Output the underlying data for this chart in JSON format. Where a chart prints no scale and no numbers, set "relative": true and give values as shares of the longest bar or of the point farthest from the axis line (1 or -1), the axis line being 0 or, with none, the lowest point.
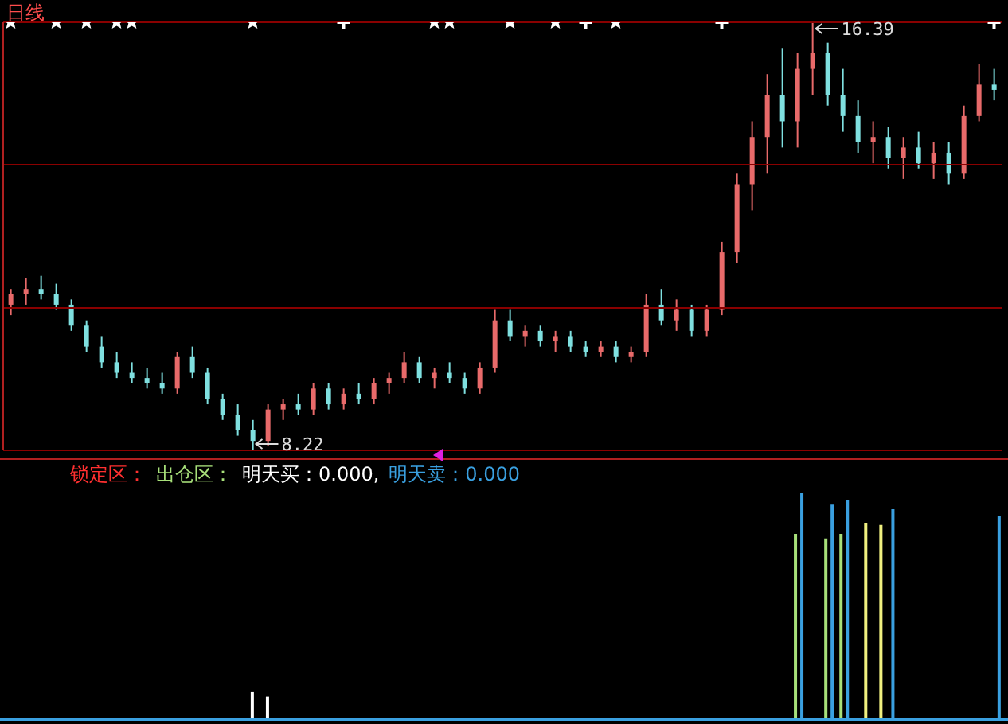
{
  "chart_data": [
    {
      "type": "candlestick",
      "title": "日线",
      "categories": [
        null,
        null,
        null,
        null,
        null,
        null,
        null,
        null,
        null,
        null,
        null,
        null,
        null,
        null,
        null,
        null,
        null,
        null,
        null,
        null,
        null,
        null,
        null,
        null,
        null,
        null,
        null,
        null,
        null,
        null,
        null,
        null,
        null,
        null,
        null,
        null,
        null,
        null,
        null,
        null,
        null,
        null,
        null,
        null,
        null,
        null,
        null,
        null,
        null,
        null,
        null,
        null,
        null,
        null,
        null,
        null,
        null,
        null,
        null,
        null,
        null,
        null,
        null,
        null,
        null,
        null
      ],
      "ohlc": [
        [
          11.0,
          11.3,
          10.8,
          11.2
        ],
        [
          11.2,
          11.5,
          11.0,
          11.3
        ],
        [
          11.3,
          11.55,
          11.1,
          11.2
        ],
        [
          11.2,
          11.4,
          10.9,
          11.0
        ],
        [
          11.0,
          11.1,
          10.5,
          10.6
        ],
        [
          10.6,
          10.7,
          10.1,
          10.2
        ],
        [
          10.2,
          10.4,
          9.8,
          9.9
        ],
        [
          9.9,
          10.1,
          9.6,
          9.7
        ],
        [
          9.7,
          9.9,
          9.5,
          9.6
        ],
        [
          9.6,
          9.8,
          9.4,
          9.5
        ],
        [
          9.5,
          9.7,
          9.3,
          9.4
        ],
        [
          9.4,
          10.1,
          9.3,
          10.0
        ],
        [
          10.0,
          10.2,
          9.6,
          9.7
        ],
        [
          9.7,
          9.8,
          9.1,
          9.2
        ],
        [
          9.2,
          9.3,
          8.8,
          8.9
        ],
        [
          8.9,
          9.1,
          8.5,
          8.6
        ],
        [
          8.6,
          8.8,
          8.22,
          8.4
        ],
        [
          8.4,
          9.1,
          8.3,
          9.0
        ],
        [
          9.0,
          9.2,
          8.8,
          9.1
        ],
        [
          9.1,
          9.3,
          8.9,
          9.0
        ],
        [
          9.0,
          9.5,
          8.9,
          9.4
        ],
        [
          9.4,
          9.5,
          9.0,
          9.1
        ],
        [
          9.1,
          9.4,
          9.0,
          9.3
        ],
        [
          9.3,
          9.5,
          9.1,
          9.2
        ],
        [
          9.2,
          9.6,
          9.1,
          9.5
        ],
        [
          9.5,
          9.7,
          9.3,
          9.6
        ],
        [
          9.6,
          10.1,
          9.5,
          9.9
        ],
        [
          9.9,
          10.0,
          9.5,
          9.6
        ],
        [
          9.6,
          9.8,
          9.4,
          9.7
        ],
        [
          9.7,
          9.9,
          9.5,
          9.6
        ],
        [
          9.6,
          9.7,
          9.3,
          9.4
        ],
        [
          9.4,
          9.9,
          9.3,
          9.8
        ],
        [
          9.8,
          10.9,
          9.7,
          10.7
        ],
        [
          10.7,
          10.9,
          10.3,
          10.4
        ],
        [
          10.4,
          10.6,
          10.2,
          10.5
        ],
        [
          10.5,
          10.6,
          10.2,
          10.3
        ],
        [
          10.3,
          10.5,
          10.1,
          10.4
        ],
        [
          10.4,
          10.5,
          10.1,
          10.2
        ],
        [
          10.2,
          10.3,
          10.0,
          10.1
        ],
        [
          10.1,
          10.3,
          10.0,
          10.2
        ],
        [
          10.2,
          10.3,
          9.9,
          10.0
        ],
        [
          10.0,
          10.2,
          9.9,
          10.1
        ],
        [
          10.1,
          11.2,
          10.0,
          11.0
        ],
        [
          11.0,
          11.3,
          10.6,
          10.7
        ],
        [
          10.7,
          11.1,
          10.5,
          10.9
        ],
        [
          10.9,
          11.0,
          10.4,
          10.5
        ],
        [
          10.5,
          11.0,
          10.4,
          10.9
        ],
        [
          10.9,
          12.2,
          10.8,
          12.0
        ],
        [
          12.0,
          13.5,
          11.8,
          13.3
        ],
        [
          13.3,
          14.5,
          12.8,
          14.2
        ],
        [
          14.2,
          15.4,
          13.5,
          15.0
        ],
        [
          15.0,
          15.9,
          14.0,
          14.5
        ],
        [
          14.5,
          15.8,
          14.0,
          15.5
        ],
        [
          15.5,
          16.39,
          15.0,
          15.8
        ],
        [
          15.8,
          16.0,
          14.8,
          15.0
        ],
        [
          15.0,
          15.5,
          14.3,
          14.6
        ],
        [
          14.6,
          14.9,
          13.9,
          14.1
        ],
        [
          14.1,
          14.5,
          13.7,
          14.2
        ],
        [
          14.2,
          14.4,
          13.6,
          13.8
        ],
        [
          13.8,
          14.2,
          13.4,
          14.0
        ],
        [
          14.0,
          14.3,
          13.6,
          13.7
        ],
        [
          13.7,
          14.1,
          13.4,
          13.9
        ],
        [
          13.9,
          14.1,
          13.3,
          13.5
        ],
        [
          13.5,
          14.8,
          13.4,
          14.6
        ],
        [
          14.6,
          15.6,
          14.5,
          15.2
        ],
        [
          15.2,
          15.5,
          14.9,
          15.1
        ]
      ],
      "colors": [
        "#e86a6a",
        "#e86a6a",
        "#7fe0e0",
        "#7fe0e0",
        "#7fe0e0",
        "#7fe0e0",
        "#7fe0e0",
        "#7fe0e0",
        "#7fe0e0",
        "#7fe0e0",
        "#7fe0e0",
        "#e86a6a",
        "#7fe0e0",
        "#7fe0e0",
        "#7fe0e0",
        "#7fe0e0",
        "#7fe0e0",
        "#e86a6a",
        "#e86a6a",
        "#7fe0e0",
        "#e86a6a",
        "#7fe0e0",
        "#e86a6a",
        "#7fe0e0",
        "#e86a6a",
        "#e86a6a",
        "#e86a6a",
        "#7fe0e0",
        "#e86a6a",
        "#7fe0e0",
        "#7fe0e0",
        "#e86a6a",
        "#e86a6a",
        "#7fe0e0",
        "#e86a6a",
        "#7fe0e0",
        "#e86a6a",
        "#7fe0e0",
        "#7fe0e0",
        "#e86a6a",
        "#7fe0e0",
        "#e86a6a",
        "#e86a6a",
        "#7fe0e0",
        "#e86a6a",
        "#7fe0e0",
        "#e86a6a",
        "#e86a6a",
        "#e86a6a",
        "#e86a6a",
        "#e86a6a",
        "#7fe0e0",
        "#e86a6a",
        "#e86a6a",
        "#7fe0e0",
        "#7fe0e0",
        "#7fe0e0",
        "#e86a6a",
        "#7fe0e0",
        "#e86a6a",
        "#7fe0e0",
        "#e86a6a",
        "#7fe0e0",
        "#e86a6a",
        "#e86a6a",
        "#7fe0e0"
      ],
      "series": [
        {
          "type": "scatter",
          "marker": "star",
          "color": "#ffffff",
          "values": [
            16.39,
            null,
            null,
            16.39,
            null,
            16.39,
            null,
            16.39,
            16.39,
            null,
            null,
            null,
            null,
            null,
            null,
            null,
            16.39,
            null,
            null,
            null,
            null,
            null,
            null,
            null,
            null,
            null,
            null,
            null,
            16.39,
            16.39,
            null,
            null,
            null,
            16.39,
            null,
            null,
            16.39,
            null,
            null,
            null,
            16.39,
            null,
            null,
            null,
            null,
            null,
            null,
            null,
            null,
            null,
            null,
            null,
            null,
            null,
            null,
            null,
            null,
            null,
            null,
            null,
            null,
            null,
            null,
            null,
            null,
            null
          ]
        },
        {
          "type": "scatter",
          "marker": "cross",
          "color": "#ffffff",
          "values": [
            null,
            null,
            null,
            null,
            null,
            null,
            null,
            null,
            null,
            null,
            null,
            null,
            null,
            null,
            null,
            null,
            null,
            null,
            null,
            null,
            null,
            null,
            16.39,
            null,
            null,
            null,
            null,
            null,
            null,
            null,
            null,
            null,
            null,
            null,
            null,
            null,
            null,
            null,
            16.39,
            null,
            null,
            null,
            null,
            null,
            null,
            null,
            null,
            16.39,
            null,
            null,
            null,
            null,
            null,
            null,
            null,
            null,
            null,
            null,
            null,
            null,
            null,
            null,
            null,
            null,
            null,
            16.39
          ]
        }
      ],
      "ylim": [
        8.22,
        16.39
      ],
      "yticks": [
        {
          "value": 8.22,
          "label": null
        },
        {
          "value": 10.94,
          "label": null
        },
        {
          "value": 13.67,
          "label": null
        },
        {
          "value": 16.39,
          "label": null
        }
      ],
      "grid": "y",
      "annotations": [
        "16.39",
        "8.22"
      ]
    },
    {
      "type": "bar",
      "relative": true,
      "legend": "top left",
      "categories": [
        null,
        null,
        null,
        null,
        null,
        null,
        null,
        null,
        null,
        null,
        null,
        null,
        null,
        null,
        null,
        null,
        null,
        null,
        null,
        null,
        null,
        null,
        null,
        null,
        null,
        null,
        null,
        null,
        null,
        null,
        null,
        null,
        null,
        null,
        null,
        null,
        null,
        null,
        null,
        null,
        null,
        null,
        null,
        null,
        null,
        null,
        null,
        null,
        null,
        null,
        null,
        null,
        null,
        null,
        null,
        null,
        null,
        null,
        null,
        null,
        null,
        null,
        null,
        null,
        null,
        null
      ],
      "series": [
        {
          "name": "锁定区：",
          "color": "#ff3030",
          "values": [
            null,
            null,
            null,
            null,
            null,
            null,
            null,
            null,
            null,
            null,
            null,
            null,
            null,
            null,
            null,
            null,
            null,
            null,
            null,
            null,
            null,
            null,
            null,
            null,
            null,
            null,
            null,
            null,
            null,
            null,
            null,
            null,
            null,
            null,
            null,
            null,
            null,
            null,
            null,
            null,
            null,
            null,
            null,
            null,
            null,
            null,
            null,
            null,
            null,
            null,
            null,
            null,
            null,
            null,
            null,
            null,
            null,
            null,
            null,
            null,
            null,
            null,
            null,
            null,
            null,
            null
          ]
        },
        {
          "name": "出仓区：",
          "color": "#a8e07a",
          "values": [
            null,
            null,
            null,
            null,
            null,
            null,
            null,
            null,
            null,
            null,
            null,
            null,
            null,
            null,
            null,
            null,
            null,
            null,
            null,
            null,
            null,
            null,
            null,
            null,
            null,
            null,
            null,
            null,
            null,
            null,
            null,
            null,
            null,
            null,
            null,
            null,
            null,
            null,
            null,
            null,
            null,
            null,
            null,
            null,
            null,
            null,
            null,
            null,
            null,
            null,
            null,
            null,
            0.82,
            null,
            0.8,
            0.82,
            null,
            null,
            null,
            null,
            null,
            null,
            null,
            null,
            null,
            null
          ]
        },
        {
          "name": "明天买：0.000,",
          "color": "#ffffff",
          "values": [
            null,
            null,
            null,
            null,
            null,
            null,
            null,
            null,
            null,
            null,
            null,
            null,
            null,
            null,
            null,
            null,
            0.12,
            0.1,
            null,
            null,
            null,
            null,
            null,
            null,
            null,
            null,
            null,
            null,
            null,
            null,
            null,
            null,
            null,
            null,
            null,
            null,
            null,
            null,
            null,
            null,
            null,
            null,
            null,
            null,
            null,
            null,
            null,
            null,
            null,
            null,
            null,
            null,
            null,
            null,
            null,
            null,
            null,
            null,
            null,
            null,
            null,
            null,
            null,
            null,
            null,
            null
          ]
        },
        {
          "name": "明天卖：0.000",
          "color": "#3aa0e0",
          "values": [
            null,
            null,
            null,
            null,
            null,
            null,
            null,
            null,
            null,
            null,
            null,
            null,
            null,
            null,
            null,
            null,
            null,
            null,
            null,
            null,
            null,
            null,
            null,
            null,
            null,
            null,
            null,
            null,
            null,
            null,
            null,
            null,
            null,
            null,
            null,
            null,
            null,
            null,
            null,
            null,
            null,
            null,
            null,
            null,
            null,
            null,
            null,
            null,
            null,
            null,
            null,
            null,
            1,
            null,
            0.95,
            0.97,
            null,
            null,
            0.93,
            null,
            null,
            null,
            null,
            null,
            null,
            0.9
          ]
        },
        {
          "color": "#f0f080",
          "values": [
            null,
            null,
            null,
            null,
            null,
            null,
            null,
            null,
            null,
            null,
            null,
            null,
            null,
            null,
            null,
            null,
            null,
            null,
            null,
            null,
            null,
            null,
            null,
            null,
            null,
            null,
            null,
            null,
            null,
            null,
            null,
            null,
            null,
            null,
            null,
            null,
            null,
            null,
            null,
            null,
            null,
            null,
            null,
            null,
            null,
            null,
            null,
            null,
            null,
            null,
            null,
            null,
            null,
            null,
            null,
            null,
            0.87,
            0.86,
            null,
            null,
            null,
            null,
            null,
            null,
            null,
            null
          ]
        }
      ]
    }
  ]
}
